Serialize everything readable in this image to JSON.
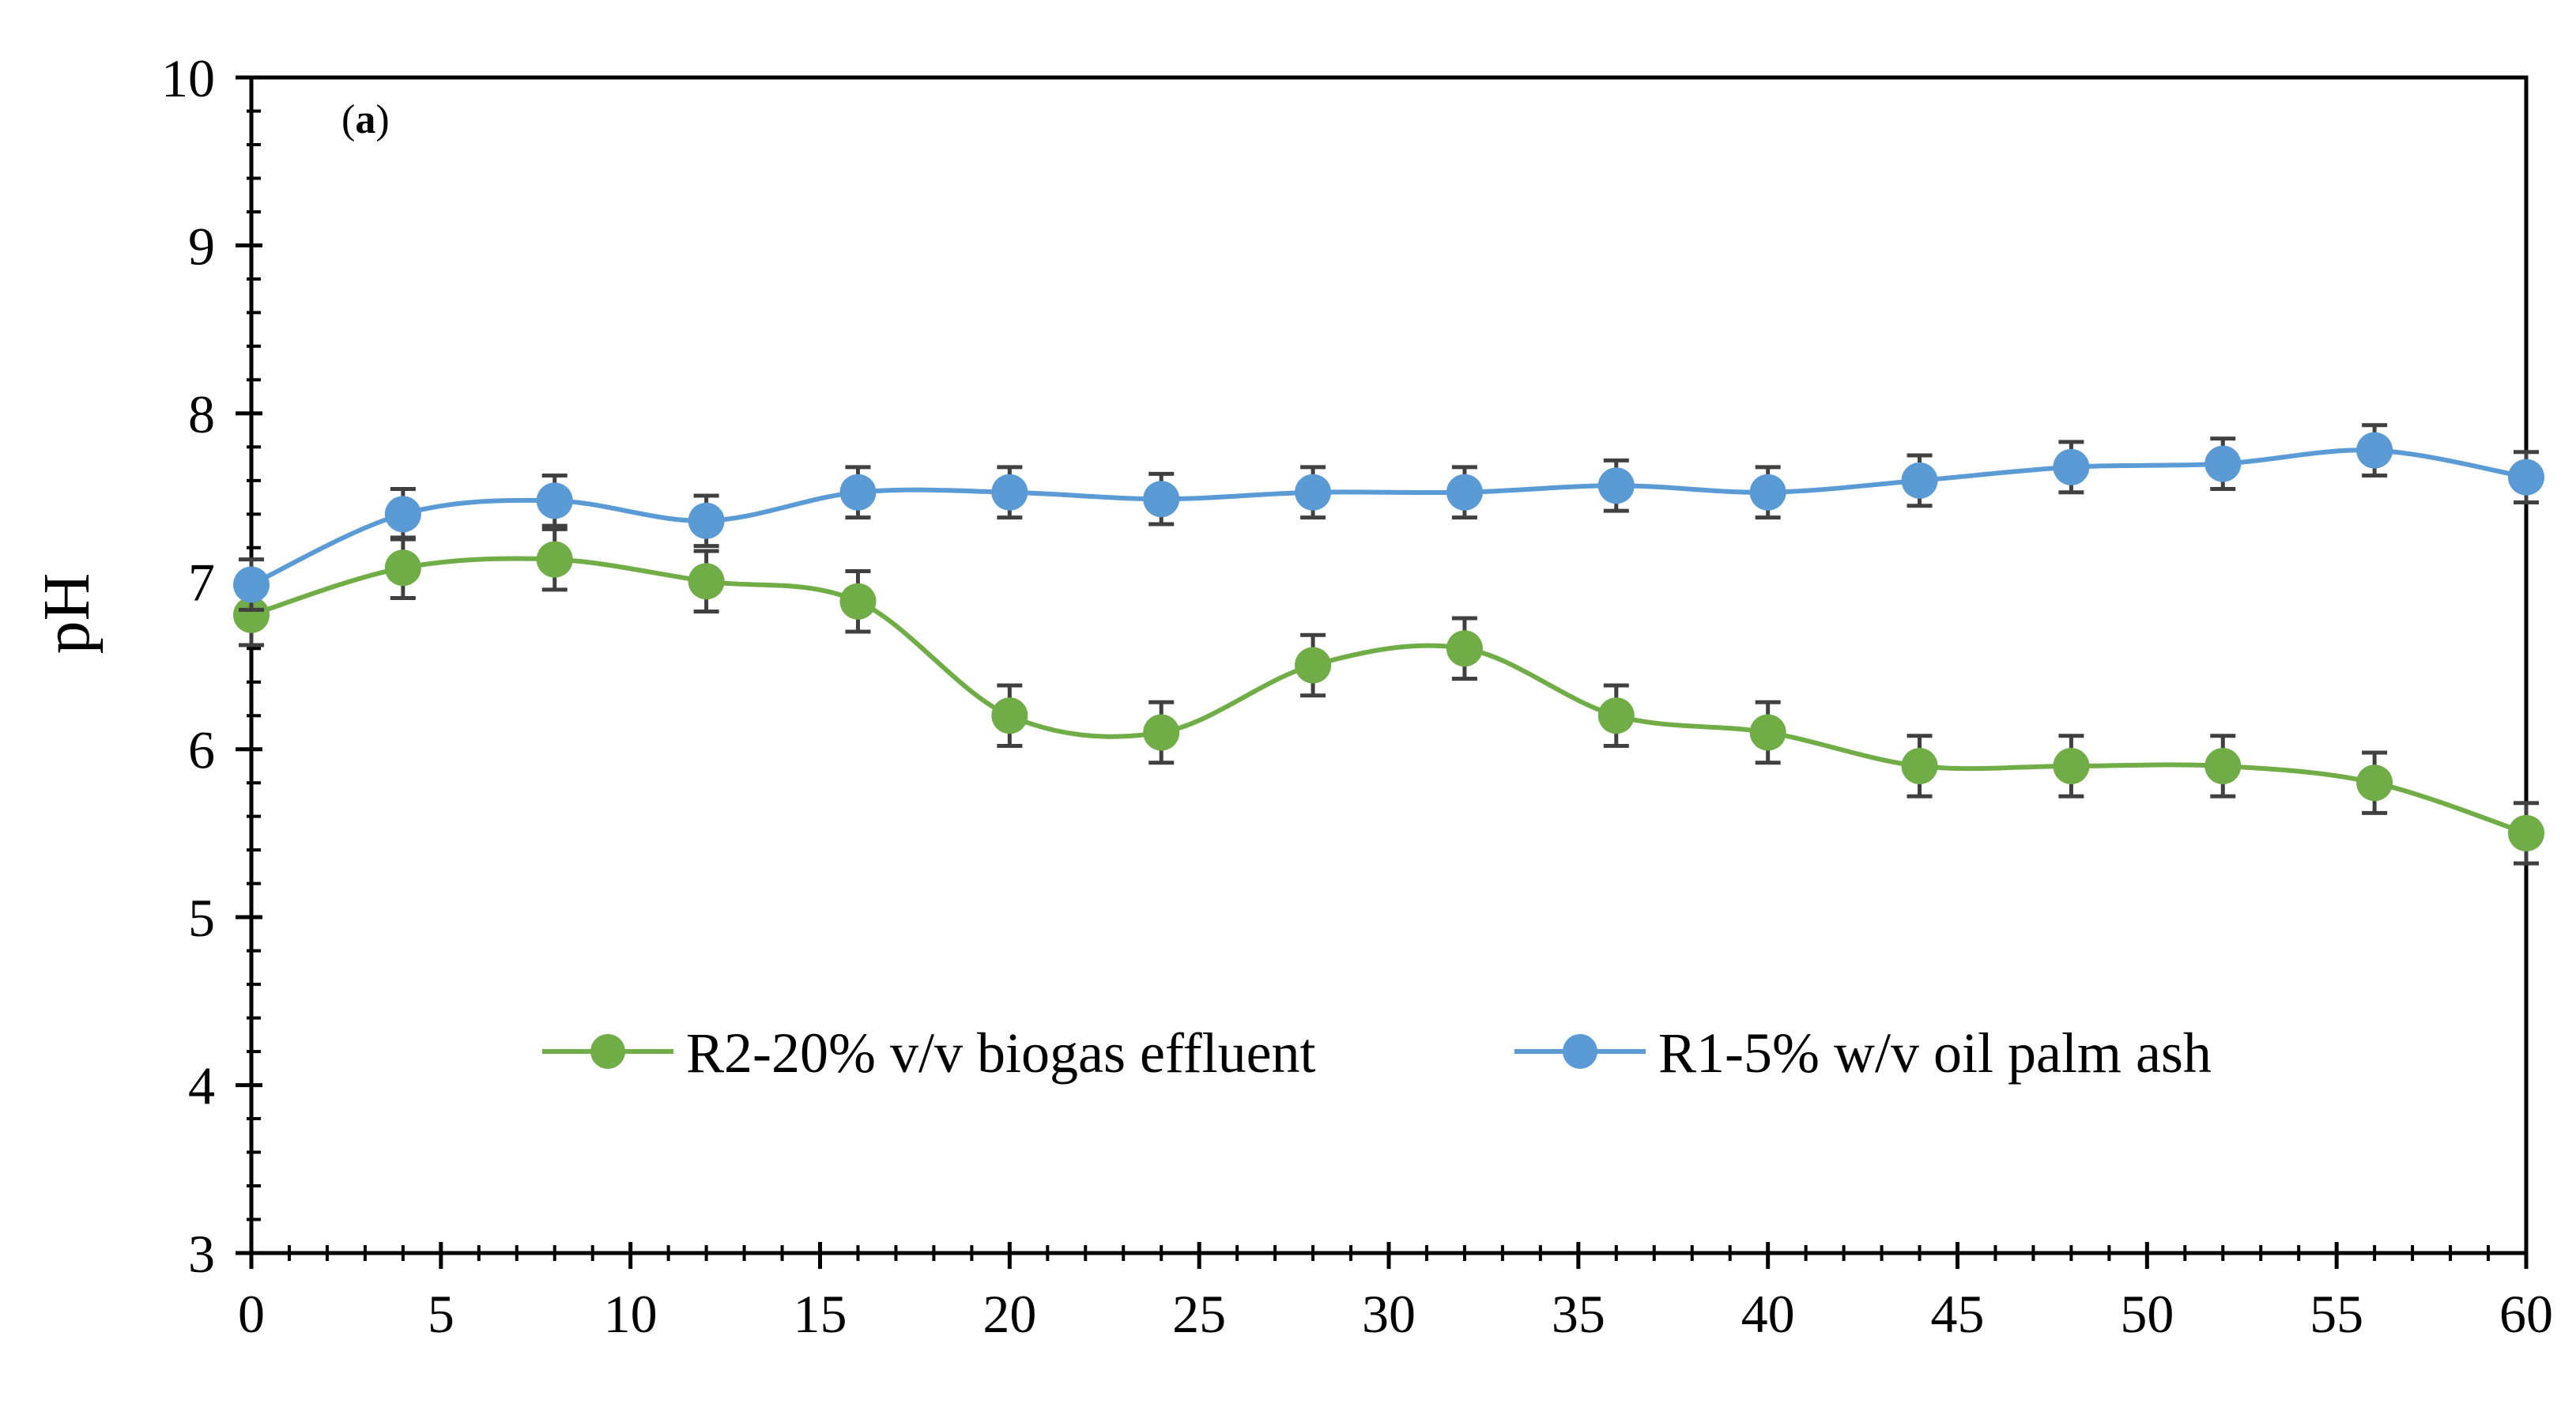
{
  "chart_data": {
    "type": "line",
    "panel_label": {
      "open": "(",
      "letter": "a",
      "close": ")"
    },
    "title": "",
    "xlabel": "",
    "ylabel": "pH",
    "xlim": [
      0,
      60
    ],
    "ylim": [
      3,
      10
    ],
    "x_ticks": [
      0,
      5,
      10,
      15,
      20,
      25,
      30,
      35,
      40,
      45,
      50,
      55,
      60
    ],
    "y_ticks": [
      3,
      4,
      5,
      6,
      7,
      8,
      9,
      10
    ],
    "x_minor_step": 1,
    "y_minor_step": 0.2,
    "grid": false,
    "legend_position": "lower-center",
    "series": [
      {
        "name": "R2-20% v/v biogas effluent",
        "color": "#70AD47",
        "marker_color": "#70AD47",
        "x": [
          0,
          4,
          8,
          12,
          16,
          20,
          24,
          28,
          32,
          36,
          40,
          44,
          48,
          52,
          56,
          60
        ],
        "y": [
          6.8,
          7.08,
          7.13,
          7.0,
          6.88,
          6.2,
          6.1,
          6.5,
          6.6,
          6.2,
          6.1,
          5.9,
          5.9,
          5.9,
          5.8,
          5.5
        ],
        "error": [
          0.18,
          0.18,
          0.18,
          0.18,
          0.18,
          0.18,
          0.18,
          0.18,
          0.18,
          0.18,
          0.18,
          0.18,
          0.18,
          0.18,
          0.18,
          0.18
        ]
      },
      {
        "name": "R1-5% w/v oil palm ash",
        "color": "#5B9BD5",
        "marker_color": "#5B9BD5",
        "x": [
          0,
          4,
          8,
          12,
          16,
          20,
          24,
          28,
          32,
          36,
          40,
          44,
          48,
          52,
          56,
          60
        ],
        "y": [
          6.98,
          7.4,
          7.48,
          7.36,
          7.53,
          7.53,
          7.49,
          7.53,
          7.53,
          7.57,
          7.53,
          7.6,
          7.68,
          7.7,
          7.78,
          7.62
        ],
        "error": [
          0.15,
          0.15,
          0.15,
          0.15,
          0.15,
          0.15,
          0.15,
          0.15,
          0.15,
          0.15,
          0.15,
          0.15,
          0.15,
          0.15,
          0.15,
          0.15
        ]
      }
    ]
  }
}
